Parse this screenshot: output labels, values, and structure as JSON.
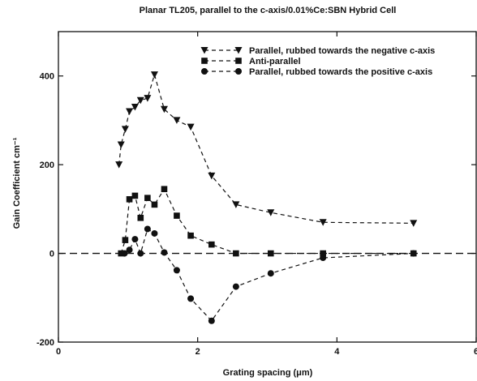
{
  "chart_data": {
    "type": "scatter",
    "title": "Planar TL205, parallel to the c-axis/0.01%Ce:SBN Hybrid Cell",
    "xlabel": "Grating spacing (μm)",
    "ylabel": "Gain Coefficient cm⁻¹",
    "xlim": [
      0,
      6
    ],
    "ylim": [
      -200,
      500
    ],
    "x_ticks": [
      "0",
      "2",
      "4",
      "6"
    ],
    "y_ticks": [
      "-200",
      "0",
      "200",
      "400"
    ],
    "legend_position": "top-right",
    "zero_line": true,
    "series": [
      {
        "name": "Parallel, rubbed towards the negative c-axis",
        "marker": "triangle-down",
        "x": [
          0.87,
          0.9,
          0.96,
          1.02,
          1.1,
          1.18,
          1.28,
          1.38,
          1.52,
          1.7,
          1.9,
          2.2,
          2.55,
          3.05,
          3.8,
          5.1
        ],
        "y": [
          200,
          245,
          280,
          320,
          330,
          345,
          350,
          403,
          325,
          300,
          285,
          175,
          110,
          92,
          70,
          68
        ]
      },
      {
        "name": "Anti-parallel",
        "marker": "square",
        "x": [
          0.9,
          0.96,
          1.02,
          1.1,
          1.18,
          1.28,
          1.38,
          1.52,
          1.7,
          1.9,
          2.2,
          2.55,
          3.05,
          3.8,
          5.1
        ],
        "y": [
          0,
          30,
          122,
          130,
          80,
          125,
          110,
          145,
          85,
          40,
          20,
          0,
          0,
          0,
          0
        ]
      },
      {
        "name": "Parallel, rubbed towards the positive c-axis",
        "marker": "circle",
        "x": [
          0.95,
          1.02,
          1.1,
          1.18,
          1.28,
          1.38,
          1.52,
          1.7,
          1.9,
          2.2,
          2.55,
          3.05,
          3.8,
          5.1
        ],
        "y": [
          0,
          8,
          32,
          0,
          55,
          45,
          2,
          -38,
          -102,
          -152,
          -75,
          -45,
          -10,
          0
        ]
      }
    ]
  }
}
